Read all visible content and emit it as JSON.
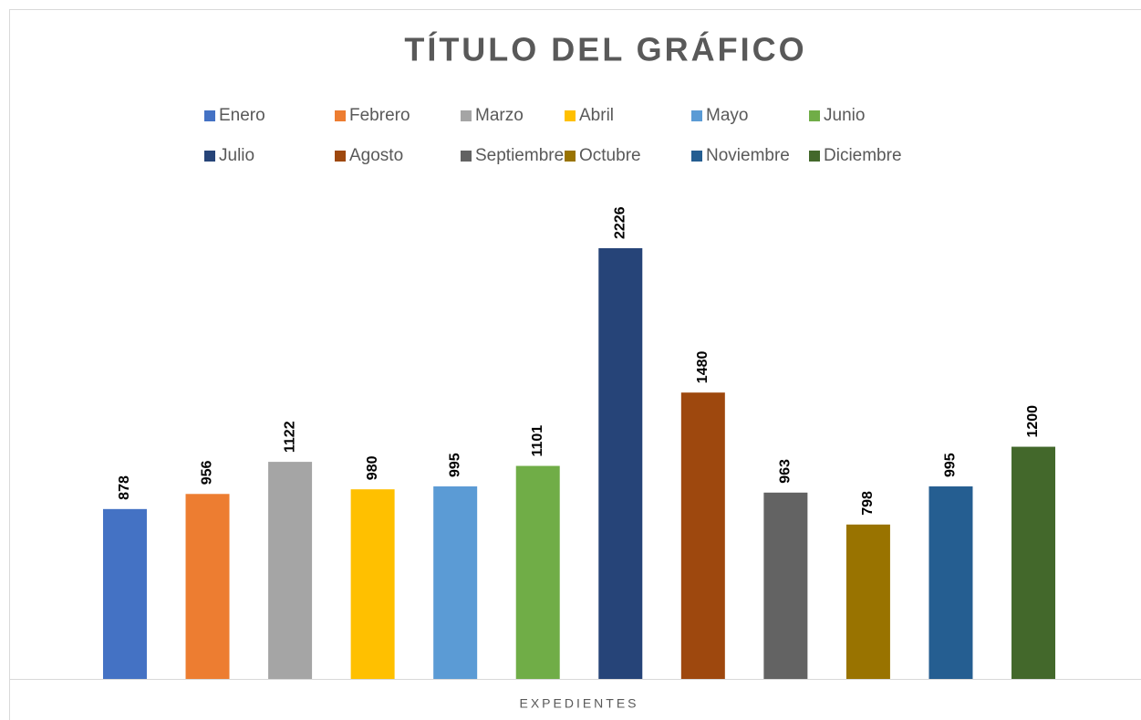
{
  "chart_data": {
    "type": "bar",
    "title": "TÍTULO DEL GRÁFICO",
    "categories": [
      "EXPEDIENTES"
    ],
    "series": [
      {
        "name": "Enero",
        "color": "#4472c4",
        "values": [
          878
        ]
      },
      {
        "name": "Febrero",
        "color": "#ed7d31",
        "values": [
          956
        ]
      },
      {
        "name": "Marzo",
        "color": "#a5a5a5",
        "values": [
          1122
        ]
      },
      {
        "name": "Abril",
        "color": "#ffc000",
        "values": [
          980
        ]
      },
      {
        "name": "Mayo",
        "color": "#5b9bd5",
        "values": [
          995
        ]
      },
      {
        "name": "Junio",
        "color": "#70ad47",
        "values": [
          1101
        ]
      },
      {
        "name": "Julio",
        "color": "#264478",
        "values": [
          2226
        ]
      },
      {
        "name": "Agosto",
        "color": "#9e480e",
        "values": [
          1480
        ]
      },
      {
        "name": "Septiembre",
        "color": "#636363",
        "values": [
          963
        ]
      },
      {
        "name": "Octubre",
        "color": "#997300",
        "values": [
          798
        ]
      },
      {
        "name": "Noviembre",
        "color": "#255e91",
        "values": [
          995
        ]
      },
      {
        "name": "Diciembre",
        "color": "#43682b",
        "values": [
          1200
        ]
      }
    ],
    "legend": "top"
  }
}
